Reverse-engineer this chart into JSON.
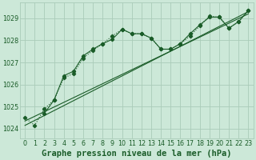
{
  "background_color": "#cce8d8",
  "grid_color": "#aaccb8",
  "line_color": "#1a5c28",
  "title": "Graphe pression niveau de la mer (hPa)",
  "xlim": [
    -0.5,
    23.5
  ],
  "ylim": [
    1023.55,
    1029.7
  ],
  "yticks": [
    1024,
    1025,
    1026,
    1027,
    1028,
    1029
  ],
  "xticks": [
    0,
    1,
    2,
    3,
    4,
    5,
    6,
    7,
    8,
    9,
    10,
    11,
    12,
    13,
    14,
    15,
    16,
    17,
    18,
    19,
    20,
    21,
    22,
    23
  ],
  "line_dotted_x": [
    0,
    1,
    2,
    3,
    4,
    5,
    6,
    7,
    8,
    9,
    10,
    11,
    12,
    13,
    14,
    15,
    16,
    17,
    18,
    19,
    20,
    21,
    22,
    23
  ],
  "line_dotted_y": [
    1024.5,
    1024.15,
    1024.9,
    1025.3,
    1026.3,
    1026.5,
    1027.2,
    1027.55,
    1027.85,
    1028.2,
    1028.5,
    1028.3,
    1028.3,
    1028.1,
    1027.6,
    1027.6,
    1027.85,
    1028.2,
    1028.65,
    1029.1,
    1029.05,
    1028.55,
    1028.85,
    1029.35
  ],
  "line_solid_markers_x": [
    2,
    3,
    4,
    5,
    6,
    7,
    8,
    9,
    10,
    11,
    12,
    13,
    14,
    15,
    16,
    17,
    18,
    19,
    20,
    21,
    22,
    23
  ],
  "line_solid_markers_y": [
    1024.7,
    1025.3,
    1026.4,
    1026.6,
    1027.3,
    1027.6,
    1027.85,
    1028.05,
    1028.5,
    1028.3,
    1028.3,
    1028.1,
    1027.6,
    1027.6,
    1027.85,
    1028.3,
    1028.7,
    1029.05,
    1029.05,
    1028.55,
    1028.85,
    1029.35
  ],
  "line_trend1_x": [
    0,
    23
  ],
  "line_trend1_y": [
    1024.15,
    1029.3
  ],
  "line_trend2_x": [
    0,
    23
  ],
  "line_trend2_y": [
    1024.35,
    1029.2
  ],
  "title_fontsize": 7.5,
  "tick_fontsize": 5.8
}
